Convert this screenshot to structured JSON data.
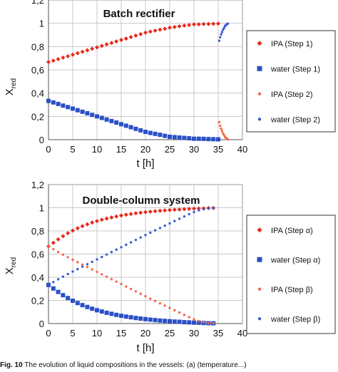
{
  "caption": {
    "label": "Fig. 10",
    "text": "The evolution of liquid compositions in the vessels: (a) (temperature...)"
  },
  "chart_data": [
    {
      "type": "scatter",
      "title": "Batch rectifier",
      "xlabel": "t [h]",
      "ylabel": "X",
      "ylabel_sub": "red",
      "xlim": [
        0,
        40
      ],
      "ylim": [
        0,
        1.2
      ],
      "xticks": [
        "0",
        "5",
        "10",
        "15",
        "20",
        "25",
        "30",
        "35",
        "40"
      ],
      "yticks": [
        "0",
        "0,2",
        "0,4",
        "0,6",
        "0,8",
        "1",
        "1,2"
      ],
      "grid": true,
      "legend_position": "right",
      "series": [
        {
          "name": "IPA (Step 1)",
          "color": "#e8291c",
          "marker": "diamond",
          "x": [
            0,
            1,
            2,
            3,
            4,
            5,
            6,
            7,
            8,
            9,
            10,
            11,
            12,
            13,
            14,
            15,
            16,
            17,
            18,
            19,
            20,
            21,
            22,
            23,
            24,
            25,
            26,
            27,
            28,
            29,
            30,
            31,
            32,
            33,
            34,
            35
          ],
          "y": [
            0.667,
            0.679,
            0.692,
            0.705,
            0.717,
            0.73,
            0.743,
            0.755,
            0.768,
            0.781,
            0.793,
            0.806,
            0.819,
            0.831,
            0.844,
            0.857,
            0.869,
            0.882,
            0.895,
            0.907,
            0.92,
            0.928,
            0.937,
            0.945,
            0.953,
            0.962,
            0.968,
            0.974,
            0.98,
            0.985,
            0.99,
            0.991,
            0.993,
            0.994,
            0.996,
            0.997
          ]
        },
        {
          "name": "water (Step 1)",
          "color": "#2a4fc6",
          "marker": "square",
          "x": [
            0,
            1,
            2,
            3,
            4,
            5,
            6,
            7,
            8,
            9,
            10,
            11,
            12,
            13,
            14,
            15,
            16,
            17,
            18,
            19,
            20,
            21,
            22,
            23,
            24,
            25,
            26,
            27,
            28,
            29,
            30,
            31,
            32,
            33,
            34,
            35
          ],
          "y": [
            0.333,
            0.32,
            0.307,
            0.293,
            0.28,
            0.267,
            0.253,
            0.24,
            0.227,
            0.213,
            0.2,
            0.187,
            0.173,
            0.16,
            0.147,
            0.133,
            0.12,
            0.107,
            0.093,
            0.08,
            0.067,
            0.058,
            0.05,
            0.042,
            0.033,
            0.025,
            0.022,
            0.018,
            0.015,
            0.012,
            0.008,
            0.008,
            0.007,
            0.005,
            0.004,
            0.003
          ]
        },
        {
          "name": "IPA (Step 2)",
          "color": "#f26a4b",
          "marker": "dot",
          "x": [
            35.2,
            35.4,
            35.6,
            35.8,
            36,
            36.2,
            36.4,
            36.6,
            36.8,
            37
          ],
          "y": [
            0.15,
            0.12,
            0.095,
            0.075,
            0.055,
            0.04,
            0.025,
            0.015,
            0.008,
            0.003
          ]
        },
        {
          "name": "water (Step 2)",
          "color": "#3b5bd6",
          "marker": "dot",
          "x": [
            35.2,
            35.4,
            35.6,
            35.8,
            36,
            36.2,
            36.4,
            36.6,
            36.8,
            37
          ],
          "y": [
            0.85,
            0.88,
            0.905,
            0.925,
            0.945,
            0.96,
            0.975,
            0.985,
            0.992,
            0.997
          ]
        }
      ]
    },
    {
      "type": "scatter",
      "title": "Double-column system",
      "xlabel": "t [h]",
      "ylabel": "X",
      "ylabel_sub": "red",
      "xlim": [
        0,
        40
      ],
      "ylim": [
        0,
        1.2
      ],
      "xticks": [
        "0",
        "5",
        "10",
        "15",
        "20",
        "25",
        "30",
        "35",
        "40"
      ],
      "yticks": [
        "0",
        "0,2",
        "0,4",
        "0,6",
        "0,8",
        "1",
        "1,2"
      ],
      "grid": true,
      "legend_position": "right",
      "series": [
        {
          "name": "IPA (Step α)",
          "color": "#e8291c",
          "marker": "diamond",
          "x": [
            0,
            1,
            2,
            3,
            4,
            5,
            6,
            7,
            8,
            9,
            10,
            11,
            12,
            13,
            14,
            15,
            16,
            17,
            18,
            19,
            20,
            21,
            22,
            23,
            24,
            25,
            26,
            27,
            28,
            29,
            30,
            31,
            32,
            33,
            34
          ],
          "y": [
            0.667,
            0.697,
            0.727,
            0.755,
            0.78,
            0.803,
            0.823,
            0.841,
            0.857,
            0.872,
            0.885,
            0.896,
            0.907,
            0.916,
            0.925,
            0.933,
            0.94,
            0.946,
            0.952,
            0.957,
            0.962,
            0.966,
            0.97,
            0.974,
            0.977,
            0.98,
            0.983,
            0.985,
            0.988,
            0.99,
            0.992,
            0.993,
            0.995,
            0.997,
            0.998
          ]
        },
        {
          "name": "water (Step α)",
          "color": "#2a4fc6",
          "marker": "square",
          "x": [
            0,
            1,
            2,
            3,
            4,
            5,
            6,
            7,
            8,
            9,
            10,
            11,
            12,
            13,
            14,
            15,
            16,
            17,
            18,
            19,
            20,
            21,
            22,
            23,
            24,
            25,
            26,
            27,
            28,
            29,
            30,
            31,
            32,
            33,
            34
          ],
          "y": [
            0.333,
            0.303,
            0.273,
            0.245,
            0.22,
            0.197,
            0.177,
            0.159,
            0.143,
            0.128,
            0.115,
            0.104,
            0.093,
            0.084,
            0.075,
            0.067,
            0.06,
            0.054,
            0.048,
            0.043,
            0.038,
            0.034,
            0.03,
            0.026,
            0.023,
            0.02,
            0.017,
            0.015,
            0.012,
            0.01,
            0.008,
            0.007,
            0.005,
            0.003,
            0.002
          ]
        },
        {
          "name": "IPA (Step β)",
          "color": "#f26a4b",
          "marker": "dot",
          "x": [
            0,
            1,
            2,
            3,
            4,
            5,
            6,
            7,
            8,
            9,
            10,
            11,
            12,
            13,
            14,
            15,
            16,
            17,
            18,
            19,
            20,
            21,
            22,
            23,
            24,
            25,
            26,
            27,
            28,
            29,
            30,
            31,
            32,
            33,
            34
          ],
          "y": [
            0.667,
            0.642,
            0.618,
            0.595,
            0.573,
            0.551,
            0.53,
            0.509,
            0.488,
            0.467,
            0.446,
            0.425,
            0.404,
            0.383,
            0.362,
            0.341,
            0.32,
            0.299,
            0.278,
            0.257,
            0.236,
            0.215,
            0.195,
            0.175,
            0.155,
            0.135,
            0.115,
            0.095,
            0.075,
            0.055,
            0.037,
            0.022,
            0.012,
            0.005,
            0.002
          ]
        },
        {
          "name": "water (Step β)",
          "color": "#3b5bd6",
          "marker": "dot",
          "x": [
            0,
            1,
            2,
            3,
            4,
            5,
            6,
            7,
            8,
            9,
            10,
            11,
            12,
            13,
            14,
            15,
            16,
            17,
            18,
            19,
            20,
            21,
            22,
            23,
            24,
            25,
            26,
            27,
            28,
            29,
            30,
            31,
            32,
            33,
            34
          ],
          "y": [
            0.333,
            0.358,
            0.382,
            0.405,
            0.427,
            0.449,
            0.47,
            0.491,
            0.512,
            0.533,
            0.554,
            0.575,
            0.596,
            0.617,
            0.638,
            0.659,
            0.68,
            0.701,
            0.722,
            0.743,
            0.764,
            0.785,
            0.805,
            0.825,
            0.845,
            0.865,
            0.885,
            0.905,
            0.925,
            0.945,
            0.963,
            0.978,
            0.988,
            0.995,
            0.998
          ]
        }
      ]
    }
  ]
}
